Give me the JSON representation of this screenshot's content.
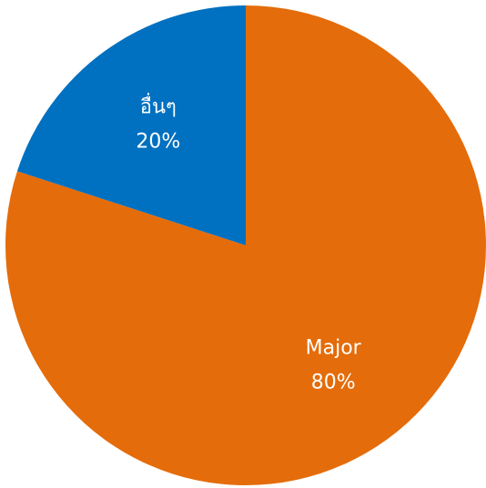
{
  "chart_data": {
    "type": "pie",
    "title": "",
    "start_angle_deg": 0,
    "direction": "clockwise",
    "slices": [
      {
        "category": "Major",
        "value": 80,
        "value_label": "80%",
        "color": "#E46C0A"
      },
      {
        "category": "อื่นๆ",
        "value": 20,
        "value_label": "20%",
        "color": "#0070C0"
      }
    ]
  }
}
